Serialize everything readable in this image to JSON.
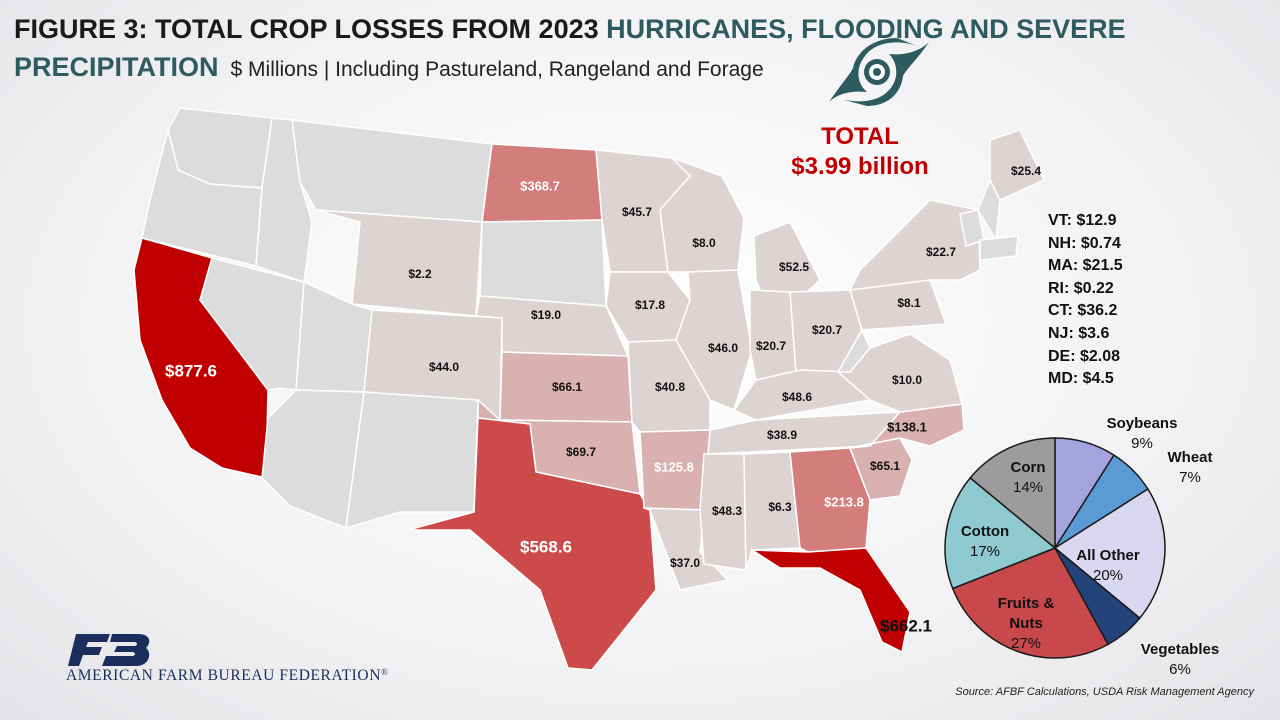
{
  "title": {
    "prefix": "FIGURE 3: TOTAL CROP LOSSES FROM 2023 ",
    "highlight": "HURRICANES, FLOODING AND SEVERE PRECIPITATION",
    "subtitle": "$ Millions | Including Pastureland, Rangeland and Forage"
  },
  "total": {
    "label": "TOTAL",
    "value": "$3.99 billion"
  },
  "colors": {
    "very_high": "#c00000",
    "high": "#cd4a4a",
    "mid": "#d47d7d",
    "low": "#d9b1b1",
    "very_low": "#ddd3d3",
    "none": "#dcdcdc",
    "hurricane_icon": "#2e5b5f"
  },
  "hurricane_icon": "hurricane-icon",
  "ne_states": [
    {
      "label": "VT: $12.9"
    },
    {
      "label": "NH: $0.74"
    },
    {
      "label": "MA: $21.5"
    },
    {
      "label": "RI: $0.22"
    },
    {
      "label": "CT: $36.2"
    },
    {
      "label": "NJ: $3.6"
    },
    {
      "label": "DE: $2.08"
    },
    {
      "label": "MD: $4.5"
    }
  ],
  "source": "Source: AFBF Calculations, USDA Risk Management Agency",
  "org": {
    "logo_letters": "FB",
    "name": "AMERICAN FARM BUREAU FEDERATION",
    "mark": "®"
  },
  "chart_data": [
    {
      "type": "map",
      "unit": "$ Millions",
      "states": [
        {
          "state": "CA",
          "label": "$877.6",
          "value": 877.6
        },
        {
          "state": "FL",
          "label": "$662.1",
          "value": 662.1
        },
        {
          "state": "TX",
          "label": "$568.6",
          "value": 568.6
        },
        {
          "state": "ND",
          "label": "$368.7",
          "value": 368.7
        },
        {
          "state": "GA",
          "label": "$213.8",
          "value": 213.8
        },
        {
          "state": "NC",
          "label": "$138.1",
          "value": 138.1
        },
        {
          "state": "AR",
          "label": "$125.8",
          "value": 125.8
        },
        {
          "state": "OK",
          "label": "$69.7",
          "value": 69.7
        },
        {
          "state": "KS",
          "label": "$66.1",
          "value": 66.1
        },
        {
          "state": "SC",
          "label": "$65.1",
          "value": 65.1
        },
        {
          "state": "MI",
          "label": "$52.5",
          "value": 52.5
        },
        {
          "state": "KY",
          "label": "$48.6",
          "value": 48.6
        },
        {
          "state": "MS",
          "label": "$48.3",
          "value": 48.3
        },
        {
          "state": "IL",
          "label": "$46.0",
          "value": 46.0
        },
        {
          "state": "MN",
          "label": "$45.7",
          "value": 45.7
        },
        {
          "state": "CO",
          "label": "$44.0",
          "value": 44.0
        },
        {
          "state": "MO",
          "label": "$40.8",
          "value": 40.8
        },
        {
          "state": "TN",
          "label": "$38.9",
          "value": 38.9
        },
        {
          "state": "LA",
          "label": "$37.0",
          "value": 37.0
        },
        {
          "state": "ME",
          "label": "$25.4",
          "value": 25.4
        },
        {
          "state": "NY",
          "label": "$22.7",
          "value": 22.7
        },
        {
          "state": "OH",
          "label": "$20.7",
          "value": 20.7
        },
        {
          "state": "IN",
          "label": "$20.7",
          "value": 20.7
        },
        {
          "state": "NE",
          "label": "$19.0",
          "value": 19.0
        },
        {
          "state": "IA",
          "label": "$17.8",
          "value": 17.8
        },
        {
          "state": "VA",
          "label": "$10.0",
          "value": 10.0
        },
        {
          "state": "PA",
          "label": "$8.1",
          "value": 8.1
        },
        {
          "state": "WI",
          "label": "$8.0",
          "value": 8.0
        },
        {
          "state": "AL",
          "label": "$6.3",
          "value": 6.3
        },
        {
          "state": "WY",
          "label": "$2.2",
          "value": 2.2
        }
      ]
    },
    {
      "type": "pie",
      "slices": [
        {
          "name": "Soybeans",
          "value": 9,
          "label": "9%",
          "color": "#a3a3de"
        },
        {
          "name": "Wheat",
          "value": 7,
          "label": "7%",
          "color": "#5b9bd5"
        },
        {
          "name": "All Other",
          "value": 20,
          "label": "20%",
          "color": "#d9d8f0"
        },
        {
          "name": "Vegetables",
          "value": 6,
          "label": "6%",
          "color": "#23437a"
        },
        {
          "name": "Fruits & Nuts",
          "value": 27,
          "label": "27%",
          "color": "#c9484b"
        },
        {
          "name": "Cotton",
          "value": 17,
          "label": "17%",
          "color": "#8fcad0"
        },
        {
          "name": "Corn",
          "value": 14,
          "label": "14%",
          "color": "#9c9c9c"
        }
      ]
    }
  ]
}
